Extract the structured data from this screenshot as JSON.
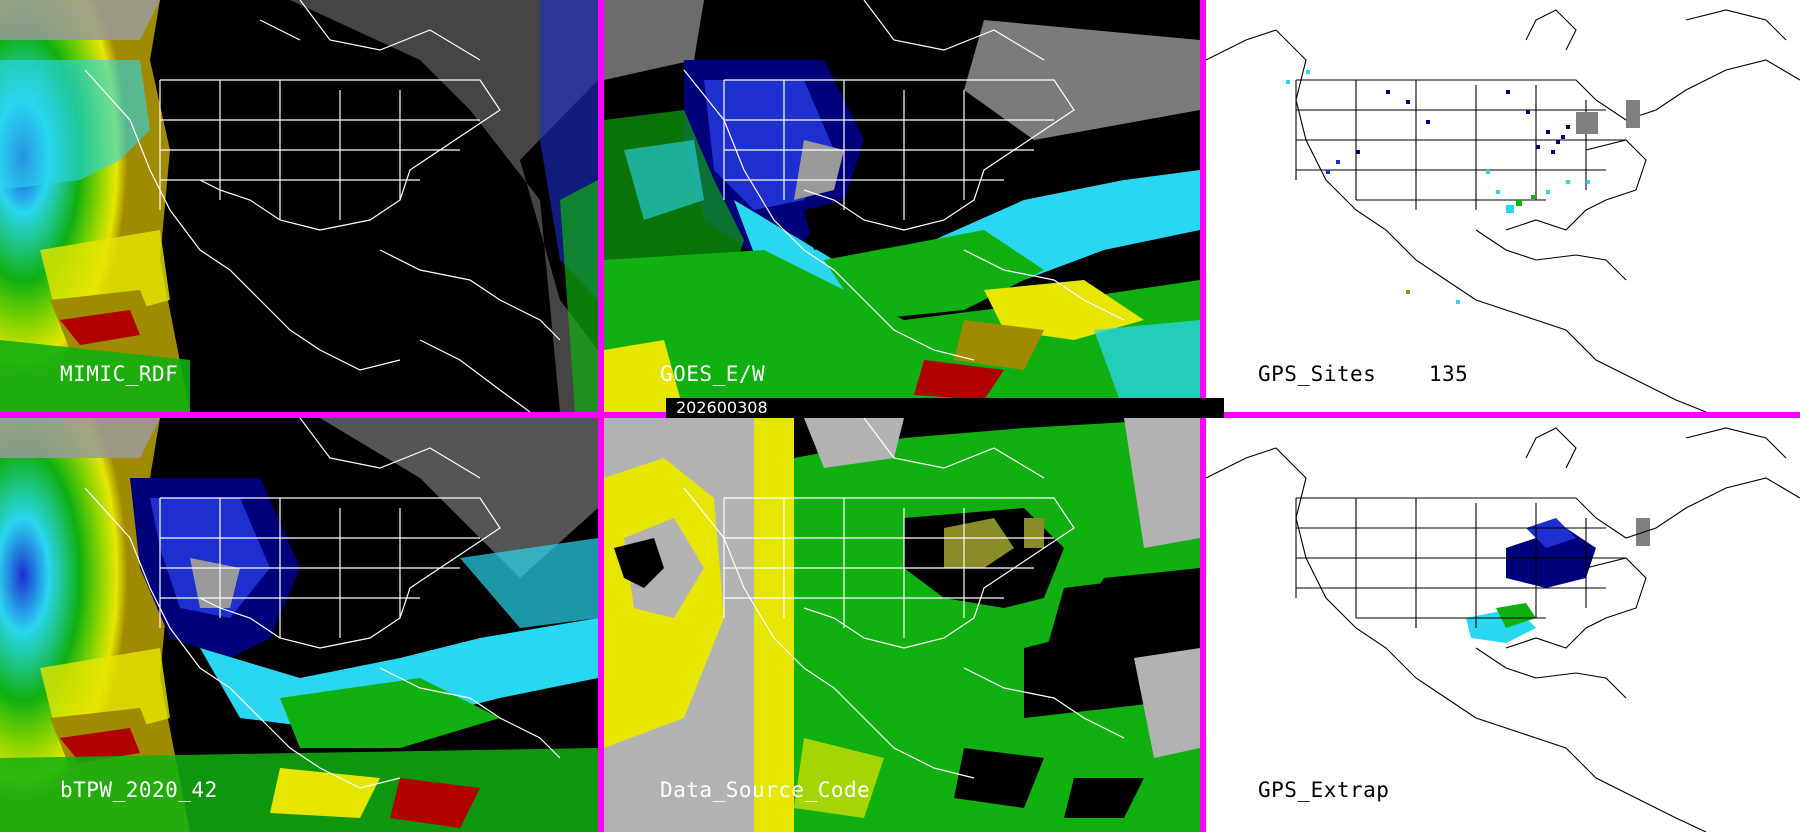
{
  "panels": {
    "top_left": {
      "label": "MIMIC_RDF"
    },
    "top_middle": {
      "label": "GOES_E/W"
    },
    "top_right": {
      "label": "GPS_Sites",
      "count": "135"
    },
    "bottom_left": {
      "label": "bTPW_2020_42"
    },
    "bottom_middle": {
      "label": "Data_Source_Code"
    },
    "bottom_right": {
      "label": "GPS_Extrap"
    }
  },
  "timestamp": "202600308",
  "colors": {
    "divider": "#ff00ff",
    "tpw_scale": [
      "#9a9a9a",
      "#00007a",
      "#1e2fd0",
      "#2ad7f0",
      "#4fe0a0",
      "#10b010",
      "#8cd500",
      "#e6e600",
      "#a08a00",
      "#b00000"
    ],
    "source_codes": [
      "#b2b2b2",
      "#e6e600",
      "#10b010",
      "#000000",
      "#8b8b2a"
    ]
  }
}
